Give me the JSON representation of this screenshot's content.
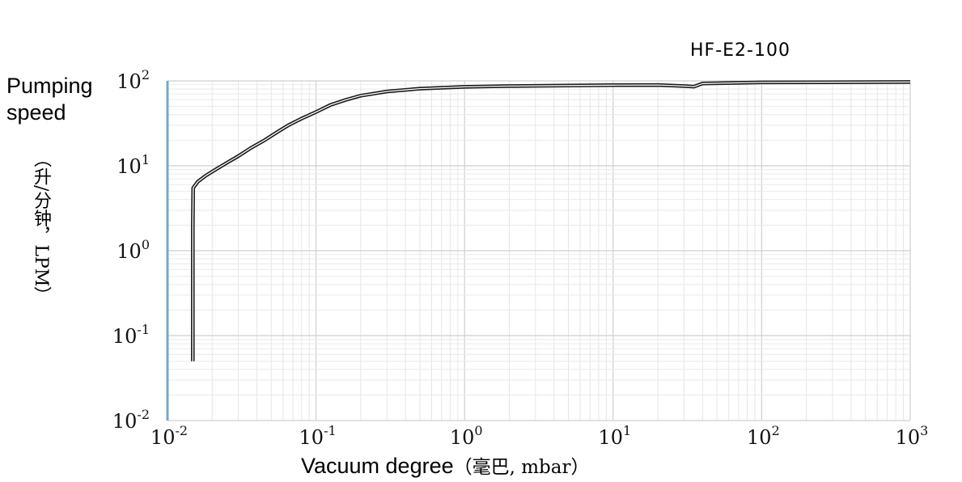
{
  "chart_data": {
    "type": "line",
    "title": "HF-E2-100",
    "ylabel": "Pumping speed",
    "ylabel_unit": "（升/分钟，LPM）",
    "xlabel": "Vacuum degree",
    "xlabel_unit": "（毫巴, mbar）",
    "xscale": "log",
    "yscale": "log",
    "xlim": [
      0.01,
      1000
    ],
    "ylim": [
      0.01,
      100
    ],
    "x_ticks": [
      {
        "base": "10",
        "exp": "-2"
      },
      {
        "base": "10",
        "exp": "-1"
      },
      {
        "base": "10",
        "exp": "0"
      },
      {
        "base": "10",
        "exp": "1"
      },
      {
        "base": "10",
        "exp": "2"
      },
      {
        "base": "10",
        "exp": "3"
      }
    ],
    "y_ticks": [
      {
        "base": "10",
        "exp": "2"
      },
      {
        "base": "10",
        "exp": "1"
      },
      {
        "base": "10",
        "exp": "0"
      },
      {
        "base": "10",
        "exp": "-1"
      },
      {
        "base": "10",
        "exp": "-2"
      }
    ],
    "grid": true,
    "series": [
      {
        "color": "#1a1a1a",
        "x": [
          0.0148,
          0.0148,
          0.0148,
          0.0149,
          0.016,
          0.018,
          0.021,
          0.025,
          0.03,
          0.036,
          0.045,
          0.055,
          0.065,
          0.08,
          0.1,
          0.125,
          0.16,
          0.2,
          0.3,
          0.5,
          1,
          2,
          5,
          10,
          20,
          30,
          35,
          40,
          100,
          1000
        ],
        "y": [
          0.05,
          0.3,
          2,
          5.5,
          6.5,
          7.6,
          9,
          10.8,
          13,
          16,
          20,
          25,
          30,
          36,
          43,
          52,
          60,
          67,
          75,
          81,
          85,
          87,
          88,
          89,
          89.5,
          87,
          85.5,
          93,
          96,
          97
        ]
      }
    ]
  }
}
